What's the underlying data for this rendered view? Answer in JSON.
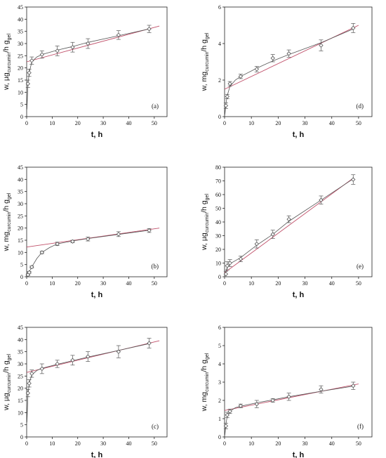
{
  "chart_data": [
    {
      "panel_label": "(a)",
      "type": "scatter",
      "xlabel": "t, h",
      "ylabel": {
        "pre": "w, µg",
        "sub1": "curcumin",
        "mid": "/h g",
        "sub2": "gel"
      },
      "xlim": [
        0,
        55
      ],
      "ylim": [
        0,
        45
      ],
      "xticks": [
        0,
        10,
        20,
        30,
        40,
        50
      ],
      "yticks": [
        0,
        5,
        10,
        15,
        20,
        25,
        30,
        35,
        40,
        45
      ],
      "points": [
        {
          "x": 0.5,
          "y": 13.5,
          "err": 1.5
        },
        {
          "x": 1,
          "y": 18,
          "err": 1.5
        },
        {
          "x": 2,
          "y": 23,
          "err": 1.5
        },
        {
          "x": 6,
          "y": 25.5,
          "err": 1.5
        },
        {
          "x": 12,
          "y": 27,
          "err": 2
        },
        {
          "x": 18,
          "y": 28.5,
          "err": 2
        },
        {
          "x": 24,
          "y": 30,
          "err": 2
        },
        {
          "x": 36,
          "y": 33.5,
          "err": 1.8
        },
        {
          "x": 48,
          "y": 36,
          "err": 1.5
        }
      ],
      "fit_line": [
        [
          0,
          22.5
        ],
        [
          52,
          37.2
        ]
      ],
      "fit_curve": [
        [
          0.1,
          3
        ],
        [
          0.5,
          13
        ],
        [
          1,
          18
        ],
        [
          2,
          22.5
        ],
        [
          4,
          24.5
        ],
        [
          6,
          25.5
        ],
        [
          12,
          27.3
        ],
        [
          18,
          28.8
        ],
        [
          24,
          30.5
        ],
        [
          36,
          33.2
        ],
        [
          48,
          36
        ]
      ]
    },
    {
      "panel_label": "(d)",
      "type": "scatter",
      "xlabel": "t, h",
      "ylabel": {
        "pre": "w, mg",
        "sub1": "curcumin",
        "mid": "/h g",
        "sub2": "gel"
      },
      "xlim": [
        0,
        55
      ],
      "ylim": [
        0,
        6
      ],
      "xticks": [
        0,
        10,
        20,
        30,
        40,
        50
      ],
      "yticks": [
        0,
        2,
        4,
        6
      ],
      "points": [
        {
          "x": 0.5,
          "y": 0.6,
          "err": 0.15
        },
        {
          "x": 1,
          "y": 1.1,
          "err": 0.12
        },
        {
          "x": 2,
          "y": 1.8,
          "err": 0.12
        },
        {
          "x": 6,
          "y": 2.2,
          "err": 0.12
        },
        {
          "x": 12,
          "y": 2.6,
          "err": 0.15
        },
        {
          "x": 18,
          "y": 3.2,
          "err": 0.2
        },
        {
          "x": 24,
          "y": 3.45,
          "err": 0.2
        },
        {
          "x": 36,
          "y": 3.9,
          "err": 0.3
        },
        {
          "x": 48,
          "y": 4.85,
          "err": 0.25
        }
      ],
      "fit_line": [
        [
          0,
          1.5
        ],
        [
          50,
          5.0
        ]
      ],
      "fit_curve": [
        [
          0.1,
          0.1
        ],
        [
          0.5,
          0.7
        ],
        [
          1,
          1.15
        ],
        [
          2,
          1.65
        ],
        [
          4,
          2.0
        ],
        [
          6,
          2.2
        ],
        [
          12,
          2.65
        ],
        [
          18,
          3.05
        ],
        [
          24,
          3.4
        ],
        [
          36,
          4.05
        ],
        [
          48,
          4.8
        ]
      ]
    },
    {
      "panel_label": "(b)",
      "type": "scatter",
      "xlabel": "t, h",
      "ylabel": {
        "pre": "w, mg",
        "sub1": "curcumin",
        "mid": "/h g",
        "sub2": "gel"
      },
      "xlim": [
        0,
        55
      ],
      "ylim": [
        0,
        45
      ],
      "xticks": [
        0,
        10,
        20,
        30,
        40,
        50
      ],
      "yticks": [
        0,
        5,
        10,
        15,
        20,
        25,
        30,
        35,
        40,
        45
      ],
      "points": [
        {
          "x": 0.5,
          "y": 0.8,
          "err": 0.3
        },
        {
          "x": 1,
          "y": 1.8,
          "err": 0.4
        },
        {
          "x": 2,
          "y": 4,
          "err": 0.4
        },
        {
          "x": 6,
          "y": 10,
          "err": 0.5
        },
        {
          "x": 12,
          "y": 13.5,
          "err": 0.7
        },
        {
          "x": 18,
          "y": 14.5,
          "err": 0.5
        },
        {
          "x": 24,
          "y": 15.5,
          "err": 0.8
        },
        {
          "x": 36,
          "y": 17.5,
          "err": 1
        },
        {
          "x": 48,
          "y": 19,
          "err": 0.8
        }
      ],
      "fit_line": [
        [
          0,
          12.2
        ],
        [
          52,
          20
        ]
      ],
      "fit_curve": [
        [
          0,
          0
        ],
        [
          1,
          2
        ],
        [
          2,
          4
        ],
        [
          4,
          7.5
        ],
        [
          6,
          10
        ],
        [
          9,
          12
        ],
        [
          12,
          13.5
        ],
        [
          18,
          14.7
        ],
        [
          24,
          15.7
        ],
        [
          36,
          17.4
        ],
        [
          48,
          19.1
        ]
      ]
    },
    {
      "panel_label": "(e)",
      "type": "scatter",
      "xlabel": "t, h",
      "ylabel": {
        "pre": "w, µg",
        "sub1": "curcumin",
        "mid": "/h g",
        "sub2": "gel"
      },
      "xlim": [
        0,
        55
      ],
      "ylim": [
        0,
        80
      ],
      "xticks": [
        0,
        10,
        20,
        30,
        40,
        50
      ],
      "yticks": [
        0,
        10,
        20,
        30,
        40,
        50,
        60,
        70,
        80
      ],
      "points": [
        {
          "x": 0.5,
          "y": 2,
          "err": 2
        },
        {
          "x": 1,
          "y": 8,
          "err": 3
        },
        {
          "x": 2,
          "y": 10,
          "err": 2.5
        },
        {
          "x": 6,
          "y": 13,
          "err": 2
        },
        {
          "x": 12,
          "y": 24,
          "err": 3
        },
        {
          "x": 18,
          "y": 31,
          "err": 3
        },
        {
          "x": 24,
          "y": 42,
          "err": 2.5
        },
        {
          "x": 36,
          "y": 56,
          "err": 3
        },
        {
          "x": 48,
          "y": 71,
          "err": 3.5
        }
      ],
      "fit_line": [
        [
          0,
          3
        ],
        [
          48,
          72
        ]
      ],
      "fit_curve": [
        [
          0.1,
          1
        ],
        [
          1,
          7
        ],
        [
          2,
          9.5
        ],
        [
          6,
          14
        ],
        [
          12,
          23
        ],
        [
          18,
          31
        ],
        [
          24,
          40.5
        ],
        [
          36,
          56
        ],
        [
          48,
          71.5
        ]
      ]
    },
    {
      "panel_label": "(c)",
      "type": "scatter",
      "xlabel": "t, h",
      "ylabel": {
        "pre": "w, µg",
        "sub1": "curcumin",
        "mid": "/h g",
        "sub2": "gel"
      },
      "xlim": [
        0,
        55
      ],
      "ylim": [
        0,
        45
      ],
      "xticks": [
        0,
        10,
        20,
        30,
        40,
        50
      ],
      "yticks": [
        0,
        5,
        10,
        15,
        20,
        25,
        30,
        35,
        40,
        45
      ],
      "points": [
        {
          "x": 0.5,
          "y": 18,
          "err": 1.5
        },
        {
          "x": 1,
          "y": 22,
          "err": 1.5
        },
        {
          "x": 2,
          "y": 26,
          "err": 1.5
        },
        {
          "x": 6,
          "y": 28,
          "err": 2
        },
        {
          "x": 12,
          "y": 30,
          "err": 1.5
        },
        {
          "x": 18,
          "y": 31.5,
          "err": 2
        },
        {
          "x": 24,
          "y": 33,
          "err": 2
        },
        {
          "x": 36,
          "y": 35,
          "err": 2.5
        },
        {
          "x": 48,
          "y": 38.5,
          "err": 2
        }
      ],
      "fit_line": [
        [
          0,
          26.5
        ],
        [
          52,
          39.5
        ]
      ],
      "fit_curve": [
        [
          0.1,
          6
        ],
        [
          0.5,
          17
        ],
        [
          1,
          22
        ],
        [
          2,
          25.5
        ],
        [
          4,
          27.3
        ],
        [
          6,
          28.2
        ],
        [
          12,
          29.8
        ],
        [
          18,
          31.3
        ],
        [
          24,
          32.8
        ],
        [
          36,
          35.5
        ],
        [
          48,
          38.3
        ]
      ]
    },
    {
      "panel_label": "(f)",
      "type": "scatter",
      "xlabel": "t, h",
      "ylabel": {
        "pre": "w, mg",
        "sub1": "curcumin",
        "mid": "/h g",
        "sub2": "gel"
      },
      "xlim": [
        0,
        55
      ],
      "ylim": [
        0,
        6
      ],
      "xticks": [
        0,
        10,
        20,
        30,
        40,
        50
      ],
      "yticks": [
        0,
        1,
        2,
        3,
        4,
        5,
        6
      ],
      "points": [
        {
          "x": 0.5,
          "y": 0.6,
          "err": 0.15
        },
        {
          "x": 1,
          "y": 1.2,
          "err": 0.15
        },
        {
          "x": 2,
          "y": 1.4,
          "err": 0.12
        },
        {
          "x": 6,
          "y": 1.7,
          "err": 0.1
        },
        {
          "x": 12,
          "y": 1.8,
          "err": 0.2
        },
        {
          "x": 18,
          "y": 2.0,
          "err": 0.1
        },
        {
          "x": 24,
          "y": 2.2,
          "err": 0.2
        },
        {
          "x": 36,
          "y": 2.6,
          "err": 0.2
        },
        {
          "x": 48,
          "y": 2.8,
          "err": 0.2
        }
      ],
      "fit_line": [
        [
          0,
          1.45
        ],
        [
          50,
          2.9
        ]
      ],
      "fit_curve": [
        [
          0.1,
          0.1
        ],
        [
          0.5,
          0.7
        ],
        [
          1,
          1.15
        ],
        [
          2,
          1.4
        ],
        [
          4,
          1.6
        ],
        [
          6,
          1.68
        ],
        [
          12,
          1.87
        ],
        [
          18,
          2.03
        ],
        [
          24,
          2.2
        ],
        [
          36,
          2.5
        ],
        [
          48,
          2.78
        ]
      ]
    }
  ],
  "colors": {
    "data": "#555555",
    "fit_line": "#c0506a",
    "axis": "#222222"
  }
}
